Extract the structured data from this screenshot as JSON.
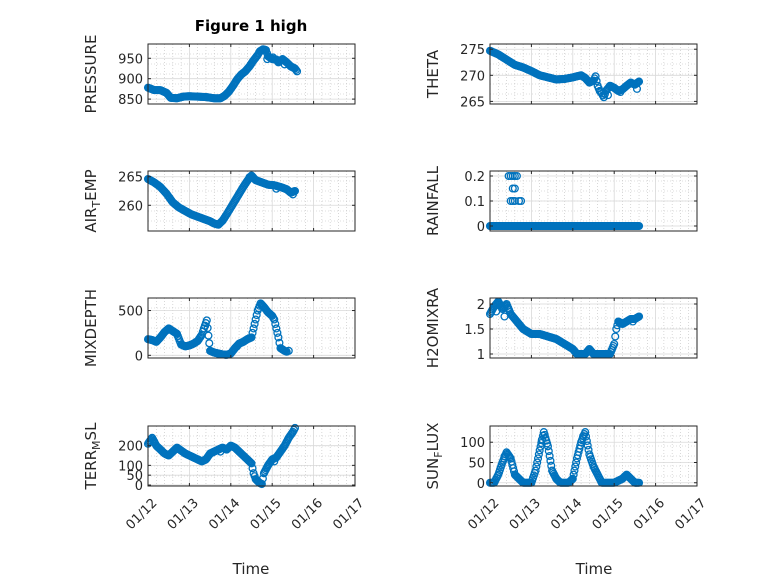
{
  "figure_title": "Figure 1 high",
  "marker_color": "#0072BD",
  "chart_data": [
    {
      "type": "scatter",
      "ylabel": "PRESSURE",
      "yticks": [
        "850",
        "900",
        "950"
      ],
      "ylim": [
        838,
        985
      ],
      "xlim": [
        0,
        5
      ],
      "segments": [
        [
          0,
          878
        ],
        [
          0.15,
          872
        ],
        [
          0.3,
          872
        ],
        [
          0.45,
          865
        ],
        [
          0.55,
          853
        ],
        [
          0.7,
          852
        ],
        [
          0.85,
          856
        ],
        [
          1.0,
          857
        ],
        [
          1.2,
          856
        ],
        [
          1.4,
          855
        ],
        [
          1.6,
          852
        ],
        [
          1.75,
          852
        ],
        [
          1.85,
          858
        ],
        [
          1.95,
          868
        ],
        [
          2.05,
          882
        ],
        [
          2.15,
          898
        ],
        [
          2.25,
          910
        ],
        [
          2.35,
          918
        ],
        [
          2.45,
          930
        ],
        [
          2.55,
          945
        ],
        [
          2.65,
          958
        ],
        [
          2.7,
          967
        ],
        [
          2.78,
          972
        ],
        [
          2.85,
          970
        ],
        [
          2.9,
          955
        ],
        [
          3.0,
          948
        ],
        [
          3.1,
          947
        ],
        [
          3.15,
          940
        ],
        [
          3.25,
          948
        ],
        [
          3.35,
          940
        ],
        [
          3.45,
          930
        ],
        [
          3.55,
          925
        ],
        [
          3.6,
          918
        ]
      ],
      "extras": [
        [
          2.88,
          948
        ],
        [
          3.02,
          952
        ],
        [
          3.3,
          935
        ]
      ]
    },
    {
      "type": "scatter",
      "ylabel": "THETA",
      "yticks": [
        "265",
        "270",
        "275"
      ],
      "ylim": [
        264.5,
        276
      ],
      "xlim": [
        0,
        5
      ],
      "segments": [
        [
          0,
          274.7
        ],
        [
          0.2,
          274
        ],
        [
          0.4,
          273
        ],
        [
          0.6,
          272
        ],
        [
          0.8,
          271.5
        ],
        [
          1.0,
          270.8
        ],
        [
          1.2,
          270
        ],
        [
          1.4,
          269.6
        ],
        [
          1.6,
          269.2
        ],
        [
          1.8,
          269.3
        ],
        [
          2.0,
          269.6
        ],
        [
          2.2,
          270
        ],
        [
          2.3,
          269.5
        ],
        [
          2.4,
          268.6
        ],
        [
          2.5,
          269
        ],
        [
          2.55,
          269.8
        ],
        [
          2.6,
          268
        ],
        [
          2.65,
          267
        ],
        [
          2.7,
          266.5
        ],
        [
          2.75,
          265.8
        ],
        [
          2.8,
          267
        ],
        [
          2.9,
          268
        ],
        [
          3.0,
          267.6
        ],
        [
          3.1,
          267
        ],
        [
          3.2,
          267.3
        ],
        [
          3.3,
          268
        ],
        [
          3.4,
          268.6
        ],
        [
          3.5,
          268.2
        ],
        [
          3.6,
          268.8
        ]
      ],
      "extras": [
        [
          2.85,
          266.2
        ],
        [
          3.15,
          266.8
        ],
        [
          3.55,
          267.4
        ]
      ]
    },
    {
      "type": "scatter",
      "ylabel": "AIR_TEMP",
      "yticks": [
        "260",
        "265"
      ],
      "ylim": [
        255.5,
        266
      ],
      "xlim": [
        0,
        5
      ],
      "segments": [
        [
          0,
          264.6
        ],
        [
          0.15,
          264
        ],
        [
          0.3,
          263.2
        ],
        [
          0.45,
          262
        ],
        [
          0.6,
          260.5
        ],
        [
          0.75,
          259.6
        ],
        [
          0.9,
          259
        ],
        [
          1.05,
          258.4
        ],
        [
          1.2,
          258
        ],
        [
          1.35,
          257.6
        ],
        [
          1.5,
          257.2
        ],
        [
          1.6,
          256.8
        ],
        [
          1.7,
          256.6
        ],
        [
          1.8,
          257.3
        ],
        [
          1.9,
          258.4
        ],
        [
          2.0,
          259.6
        ],
        [
          2.1,
          260.8
        ],
        [
          2.2,
          262
        ],
        [
          2.3,
          263.2
        ],
        [
          2.4,
          264.3
        ],
        [
          2.5,
          265.2
        ],
        [
          2.6,
          264.4
        ],
        [
          2.75,
          264
        ],
        [
          2.9,
          263.6
        ],
        [
          3.05,
          263.5
        ],
        [
          3.2,
          263.2
        ],
        [
          3.35,
          262.8
        ],
        [
          3.45,
          262.2
        ],
        [
          3.55,
          262.5
        ]
      ],
      "extras": [
        [
          2.45,
          264.9
        ],
        [
          3.1,
          262.9
        ],
        [
          3.5,
          261.9
        ]
      ]
    },
    {
      "type": "scatter",
      "ylabel": "RAINFALL",
      "yticks": [
        "0",
        "0.1",
        "0.2"
      ],
      "ylim": [
        -0.02,
        0.22
      ],
      "xlim": [
        0,
        5
      ],
      "segments": [
        [
          0,
          0
        ],
        [
          3.6,
          0
        ]
      ],
      "extras": [
        [
          0.45,
          0.2
        ],
        [
          0.5,
          0.2
        ],
        [
          0.55,
          0.2
        ],
        [
          0.6,
          0.2
        ],
        [
          0.65,
          0.2
        ],
        [
          0.5,
          0.1
        ],
        [
          0.55,
          0.1
        ],
        [
          0.6,
          0.1
        ],
        [
          0.7,
          0.1
        ],
        [
          0.75,
          0.1
        ],
        [
          0.55,
          0.15
        ],
        [
          0.6,
          0.15
        ]
      ]
    },
    {
      "type": "scatter",
      "ylabel": "MIXDEPTH",
      "yticks": [
        "0",
        "500"
      ],
      "ylim": [
        -30,
        640
      ],
      "xlim": [
        0,
        5
      ],
      "segments": [
        [
          0,
          180
        ],
        [
          0.1,
          170
        ],
        [
          0.2,
          150
        ],
        [
          0.3,
          200
        ],
        [
          0.4,
          260
        ],
        [
          0.5,
          300
        ],
        [
          0.6,
          270
        ],
        [
          0.7,
          240
        ],
        [
          0.8,
          120
        ],
        [
          0.9,
          100
        ],
        [
          1.0,
          110
        ],
        [
          1.1,
          130
        ],
        [
          1.2,
          160
        ],
        [
          1.3,
          230
        ],
        [
          1.35,
          300
        ],
        [
          1.42,
          390
        ],
        [
          1.5,
          50
        ],
        [
          1.6,
          30
        ],
        [
          1.7,
          20
        ],
        [
          1.8,
          10
        ],
        [
          1.9,
          5
        ],
        [
          2.0,
          20
        ],
        [
          2.1,
          80
        ],
        [
          2.2,
          130
        ],
        [
          2.3,
          150
        ],
        [
          2.4,
          180
        ],
        [
          2.5,
          200
        ],
        [
          2.55,
          300
        ],
        [
          2.6,
          400
        ],
        [
          2.65,
          500
        ],
        [
          2.72,
          580
        ],
        [
          2.8,
          540
        ],
        [
          2.9,
          480
        ],
        [
          3.0,
          440
        ],
        [
          3.05,
          400
        ],
        [
          3.1,
          300
        ],
        [
          3.15,
          200
        ],
        [
          3.2,
          80
        ],
        [
          3.3,
          50
        ],
        [
          3.35,
          40
        ]
      ],
      "extras": [
        [
          1.38,
          330
        ],
        [
          2.15,
          100
        ],
        [
          3.4,
          50
        ]
      ]
    },
    {
      "type": "scatter",
      "ylabel": "H2OMIXRA",
      "yticks": [
        "1",
        "1.5",
        "2"
      ],
      "ylim": [
        0.92,
        2.12
      ],
      "xlim": [
        0,
        5
      ],
      "segments": [
        [
          0,
          1.8
        ],
        [
          0.1,
          1.95
        ],
        [
          0.2,
          2.05
        ],
        [
          0.3,
          1.9
        ],
        [
          0.4,
          2.0
        ],
        [
          0.5,
          1.8
        ],
        [
          0.6,
          1.7
        ],
        [
          0.7,
          1.6
        ],
        [
          0.8,
          1.5
        ],
        [
          0.9,
          1.45
        ],
        [
          1.0,
          1.4
        ],
        [
          1.2,
          1.4
        ],
        [
          1.4,
          1.35
        ],
        [
          1.6,
          1.3
        ],
        [
          1.8,
          1.2
        ],
        [
          2.0,
          1.1
        ],
        [
          2.1,
          1.0
        ],
        [
          2.3,
          1.0
        ],
        [
          2.4,
          1.1
        ],
        [
          2.5,
          1.0
        ],
        [
          2.6,
          1.0
        ],
        [
          2.7,
          1.0
        ],
        [
          2.8,
          1.0
        ],
        [
          2.9,
          1.0
        ],
        [
          3.0,
          1.2
        ],
        [
          3.05,
          1.5
        ],
        [
          3.1,
          1.65
        ],
        [
          3.2,
          1.6
        ],
        [
          3.3,
          1.65
        ],
        [
          3.4,
          1.7
        ],
        [
          3.5,
          1.7
        ],
        [
          3.6,
          1.75
        ]
      ],
      "extras": [
        [
          0.15,
          1.85
        ],
        [
          0.35,
          1.75
        ],
        [
          2.2,
          1.0
        ],
        [
          3.45,
          1.65
        ]
      ]
    },
    {
      "type": "scatter",
      "ylabel": "TERR_MSL",
      "yticks": [
        "0",
        "50",
        "100",
        "200"
      ],
      "ylim": [
        -5,
        300
      ],
      "xlim": [
        0,
        5
      ],
      "segments": [
        [
          0,
          210
        ],
        [
          0.1,
          240
        ],
        [
          0.2,
          200
        ],
        [
          0.3,
          180
        ],
        [
          0.4,
          160
        ],
        [
          0.5,
          150
        ],
        [
          0.6,
          170
        ],
        [
          0.7,
          190
        ],
        [
          0.8,
          175
        ],
        [
          0.9,
          160
        ],
        [
          1.0,
          150
        ],
        [
          1.1,
          140
        ],
        [
          1.2,
          130
        ],
        [
          1.3,
          120
        ],
        [
          1.4,
          130
        ],
        [
          1.5,
          160
        ],
        [
          1.6,
          170
        ],
        [
          1.7,
          180
        ],
        [
          1.8,
          190
        ],
        [
          1.9,
          180
        ],
        [
          2.0,
          200
        ],
        [
          2.1,
          190
        ],
        [
          2.2,
          170
        ],
        [
          2.3,
          150
        ],
        [
          2.4,
          130
        ],
        [
          2.5,
          110
        ],
        [
          2.55,
          60
        ],
        [
          2.6,
          30
        ],
        [
          2.7,
          10
        ],
        [
          2.75,
          5
        ],
        [
          2.8,
          60
        ],
        [
          2.9,
          100
        ],
        [
          3.0,
          130
        ],
        [
          3.1,
          140
        ],
        [
          3.2,
          170
        ],
        [
          3.3,
          200
        ],
        [
          3.4,
          240
        ],
        [
          3.5,
          270
        ],
        [
          3.55,
          290
        ]
      ],
      "extras": [
        [
          0.15,
          220
        ],
        [
          1.75,
          170
        ],
        [
          2.65,
          20
        ],
        [
          3.05,
          120
        ]
      ]
    },
    {
      "type": "scatter",
      "ylabel": "SUN_FLUX",
      "yticks": [
        "0",
        "50",
        "100"
      ],
      "ylim": [
        -8,
        140
      ],
      "xlim": [
        0,
        5
      ],
      "segments": [
        [
          0,
          0
        ],
        [
          0.1,
          0
        ],
        [
          0.2,
          20
        ],
        [
          0.3,
          50
        ],
        [
          0.4,
          75
        ],
        [
          0.5,
          60
        ],
        [
          0.6,
          20
        ],
        [
          0.7,
          10
        ],
        [
          0.8,
          0
        ],
        [
          0.9,
          0
        ],
        [
          1.0,
          0
        ],
        [
          1.1,
          30
        ],
        [
          1.2,
          80
        ],
        [
          1.3,
          125
        ],
        [
          1.4,
          90
        ],
        [
          1.5,
          30
        ],
        [
          1.6,
          10
        ],
        [
          1.7,
          0
        ],
        [
          1.8,
          0
        ],
        [
          1.9,
          0
        ],
        [
          2.0,
          10
        ],
        [
          2.1,
          60
        ],
        [
          2.2,
          100
        ],
        [
          2.3,
          125
        ],
        [
          2.4,
          70
        ],
        [
          2.5,
          40
        ],
        [
          2.6,
          20
        ],
        [
          2.7,
          0
        ],
        [
          2.8,
          0
        ],
        [
          2.9,
          0
        ],
        [
          3.0,
          0
        ],
        [
          3.1,
          5
        ],
        [
          3.2,
          10
        ],
        [
          3.3,
          20
        ],
        [
          3.4,
          10
        ],
        [
          3.5,
          0
        ],
        [
          3.6,
          0
        ]
      ],
      "extras": [
        [
          0.35,
          65
        ],
        [
          1.25,
          105
        ],
        [
          2.25,
          115
        ],
        [
          3.25,
          15
        ]
      ]
    }
  ],
  "x_ticks": [
    "01/12",
    "01/13",
    "01/14",
    "01/15",
    "01/16",
    "01/17"
  ],
  "x_label": "Time"
}
